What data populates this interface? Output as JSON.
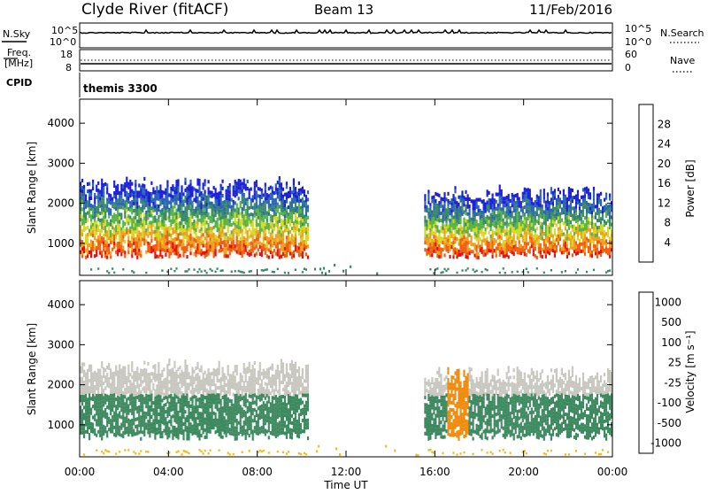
{
  "header": {
    "station": "Clyde River (fitACF)",
    "beam": "Beam 13",
    "date": "11/Feb/2016"
  },
  "top_panels": {
    "nsky_label": "N.Sky",
    "nsky_ticks": [
      "10^5",
      "10^0"
    ],
    "nsearch_label": "N.Search",
    "freq_label_1": "Freq.",
    "freq_label_2": "[MHz]",
    "freq_ticks": [
      "18",
      "8"
    ],
    "nave_label": "Nave",
    "nave_ticks": [
      "60",
      "0"
    ],
    "cpid_label": "CPID",
    "cpid_value": "themis 3300"
  },
  "chart_data": [
    {
      "type": "heatmap",
      "name": "power",
      "ylabel": "Slant Range [km]",
      "yticks": [
        1000,
        2000,
        3000,
        4000
      ],
      "ylim": [
        200,
        4600
      ],
      "xlim_hours": [
        0,
        24
      ],
      "colorbar": {
        "label": "Power [dB]",
        "ticks": [
          4,
          8,
          12,
          16,
          20,
          24,
          28
        ],
        "range": [
          0,
          32
        ],
        "colors": [
          "#1c20d8",
          "#2a64b8",
          "#3a8a6a",
          "#56b448",
          "#d8d820",
          "#f0a020",
          "#f06010",
          "#e41010"
        ]
      }
    },
    {
      "type": "heatmap",
      "name": "velocity",
      "ylabel": "Slant Range [km]",
      "yticks": [
        1000,
        2000,
        3000,
        4000
      ],
      "ylim": [
        200,
        4600
      ],
      "xlim_hours": [
        0,
        24
      ],
      "colorbar": {
        "label": "Velocity [m s⁻¹]",
        "ticks": [
          1000,
          500,
          100,
          25,
          -25,
          -100,
          -500,
          -1000
        ],
        "colors": [
          "#2a3ab0",
          "#2e7a90",
          "#3e8a60",
          "#58c030",
          "#c8c8c0",
          "#f0c020",
          "#f08c10",
          "#e81010"
        ]
      }
    }
  ],
  "x_axis": {
    "label": "Time UT",
    "ticks": [
      "00:00",
      "04:00",
      "08:00",
      "12:00",
      "16:00",
      "20:00",
      "00:00"
    ]
  }
}
